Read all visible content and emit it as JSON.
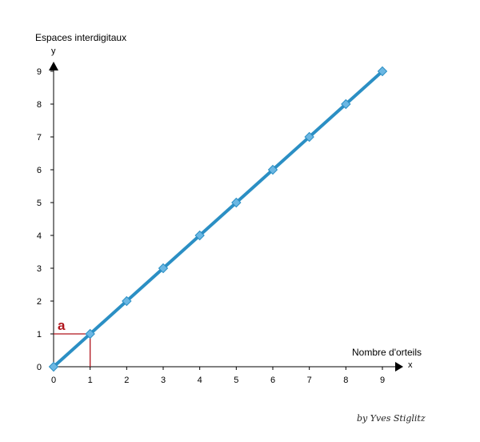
{
  "chart_data": {
    "type": "line",
    "title": "",
    "ylabel": "Espaces interdigitaux",
    "xlabel": "Nombre d'orteils",
    "y_axis_name": "y",
    "x_axis_name": "x",
    "x": [
      0,
      1,
      2,
      3,
      4,
      5,
      6,
      7,
      8,
      9
    ],
    "series": [
      {
        "values": [
          0,
          1,
          2,
          3,
          4,
          5,
          6,
          7,
          8,
          9
        ]
      }
    ],
    "xlim": [
      0,
      9
    ],
    "ylim": [
      0,
      9
    ],
    "x_ticks": [
      "0",
      "1",
      "2",
      "3",
      "4",
      "5",
      "6",
      "7",
      "8",
      "9"
    ],
    "y_ticks": [
      "0",
      "1",
      "2",
      "3",
      "4",
      "5",
      "6",
      "7",
      "8",
      "9"
    ],
    "grid": false,
    "series_color": "#2b8fc4",
    "marker_color": "#6bb7e3",
    "annotation": {
      "label": "a",
      "x": 1,
      "y": 1,
      "color": "#b0141c"
    }
  },
  "credit": "by Yves Stiglitz"
}
